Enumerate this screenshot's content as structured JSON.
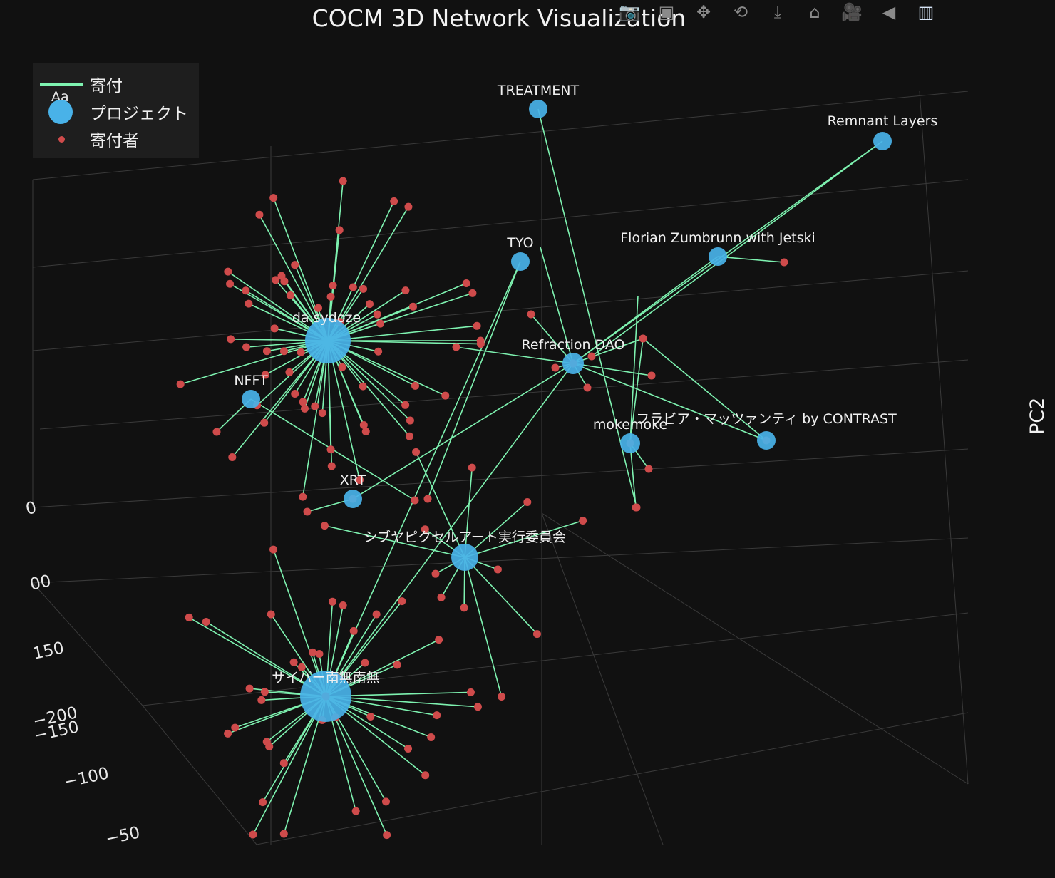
{
  "chart_data": {
    "type": "scatter",
    "title": "COCM 3D Network Visualization",
    "axis_title": "PC2",
    "axis_tick_labels": [
      "0",
      "00",
      "150",
      "−200",
      "−150",
      "−100",
      "−50"
    ],
    "legend": {
      "placement": "top-left",
      "entries": [
        {
          "name": "寄付",
          "swatch": "Aa"
        },
        {
          "name": "プロジェクト"
        },
        {
          "name": "寄付者"
        }
      ]
    },
    "colors": {
      "background": "#111111",
      "edge": "#7ef2b0",
      "project": "#49b2e8",
      "donor": "#cf4b4b",
      "grid": "#3a3a3a",
      "legend_bg": "#1e1e1e"
    },
    "projects": [
      {
        "label": "TREATMENT",
        "size": "small"
      },
      {
        "label": "Remnant Layers",
        "size": "small"
      },
      {
        "label": "TYO",
        "size": "small"
      },
      {
        "label": "Florian Zumbrunn with Jetski",
        "size": "small"
      },
      {
        "label": "da.sydoze",
        "size": "large"
      },
      {
        "label": "Refraction DAO",
        "size": "small"
      },
      {
        "label": "NFFT",
        "size": "small"
      },
      {
        "label": "フラビア・マッツァンティ by CONTRAST",
        "size": "small"
      },
      {
        "label": "mokemoke",
        "size": "small"
      },
      {
        "label": "XRT",
        "size": "small"
      },
      {
        "label": "シブヤピクセルアート実行委員会",
        "size": "medium"
      },
      {
        "label": "サイバー南無南無",
        "size": "large"
      }
    ]
  },
  "modebar": {
    "icons": [
      "camera-icon",
      "zoom-icon",
      "pan-icon",
      "orbit-icon",
      "turntable-icon",
      "home-icon",
      "camera-view-icon",
      "hover-icon",
      "plotly-logo-icon"
    ],
    "glyphs": [
      "📷",
      "▣",
      "✥",
      "⟲",
      "⤓",
      "⌂",
      "🎥",
      "◀",
      "▥"
    ]
  }
}
